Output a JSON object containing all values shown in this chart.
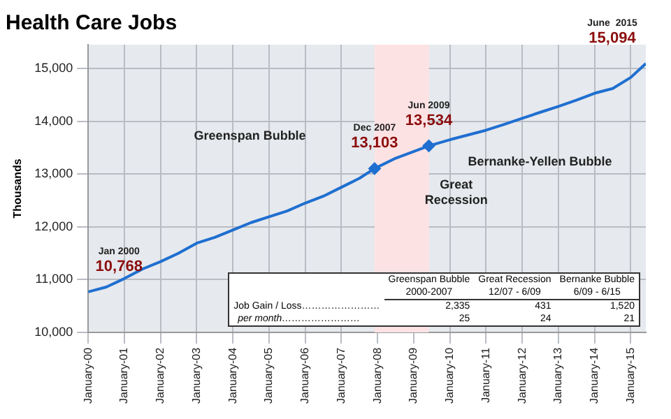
{
  "chart_data": {
    "type": "line",
    "title": "Health Care Jobs",
    "ylabel": "Thousands",
    "x": [
      "2000-01",
      "2000-07",
      "2001-01",
      "2001-07",
      "2002-01",
      "2002-07",
      "2003-01",
      "2003-07",
      "2004-01",
      "2004-07",
      "2005-01",
      "2005-07",
      "2006-01",
      "2006-07",
      "2007-01",
      "2007-07",
      "2007-12",
      "2008-07",
      "2009-06",
      "2010-01",
      "2010-07",
      "2011-01",
      "2011-07",
      "2012-01",
      "2012-07",
      "2013-01",
      "2013-07",
      "2014-01",
      "2014-07",
      "2015-01",
      "2015-06"
    ],
    "series": [
      {
        "type": "line",
        "color": "#1f6fd0",
        "marker": "none",
        "values": [
          10768,
          10860,
          11020,
          11200,
          11340,
          11500,
          11690,
          11800,
          11940,
          12080,
          12190,
          12300,
          12450,
          12580,
          12750,
          12920,
          13103,
          13300,
          13534,
          13650,
          13740,
          13830,
          13940,
          14055,
          14170,
          14280,
          14400,
          14530,
          14620,
          14830,
          15094
        ]
      },
      {
        "type": "scatter",
        "color": "#1f6fd0",
        "marker": "diamond",
        "x": [
          "2007-12",
          "2009-06"
        ],
        "values": [
          13103,
          13534
        ]
      }
    ],
    "xlim": [
      "2000-01",
      "2015-06"
    ],
    "xticks": [
      {
        "value": "2000-01",
        "label": "January-00"
      },
      {
        "value": "2001-01",
        "label": "January-01"
      },
      {
        "value": "2002-01",
        "label": "January-02"
      },
      {
        "value": "2003-01",
        "label": "January-03"
      },
      {
        "value": "2004-01",
        "label": "January-04"
      },
      {
        "value": "2005-01",
        "label": "January-05"
      },
      {
        "value": "2006-01",
        "label": "January-06"
      },
      {
        "value": "2007-01",
        "label": "January-07"
      },
      {
        "value": "2008-01",
        "label": "January-08"
      },
      {
        "value": "2009-01",
        "label": "January-09"
      },
      {
        "value": "2010-01",
        "label": "January-10"
      },
      {
        "value": "2011-01",
        "label": "January-11"
      },
      {
        "value": "2012-01",
        "label": "January-12"
      },
      {
        "value": "2013-01",
        "label": "January-13"
      },
      {
        "value": "2014-01",
        "label": "January-14"
      },
      {
        "value": "2015-01",
        "label": "January-15"
      }
    ],
    "ylim": [
      10000,
      15450
    ],
    "yticks": [
      {
        "value": 10000,
        "label": "10,000"
      },
      {
        "value": 11000,
        "label": "11,000"
      },
      {
        "value": 12000,
        "label": "12,000"
      },
      {
        "value": 13000,
        "label": "13,000"
      },
      {
        "value": 14000,
        "label": "14,000"
      },
      {
        "value": 15000,
        "label": "15,000"
      }
    ],
    "bands": [
      {
        "axis": "x",
        "from": "2007-12",
        "to": "2009-06",
        "color": "#fde2e4"
      }
    ],
    "grid": true,
    "legend": false,
    "annotations": [
      {
        "text": "10,768",
        "x": "2000-01",
        "y": 10768
      },
      {
        "text": "13,103",
        "x": "2007-12",
        "y": 13103
      },
      {
        "text": "13,534",
        "x": "2009-06",
        "y": 13534
      },
      {
        "text": "15,094",
        "x": "2015-06",
        "y": 15094
      },
      "Jan 2000",
      "Dec 2007",
      "Jun 2009",
      "June  2015",
      "Greenspan Bubble",
      "Bernanke-Yellen Bubble",
      "Great Recession",
      "Greenspan Bubble",
      "Great Recession",
      "Bernanke Bubble",
      "2000-2007",
      "12/07 - 6/09",
      "6/09 - 6/15",
      "Job Gain / Loss……………………",
      "2,335",
      "431",
      "1,520",
      "per month……………………",
      "25",
      "24",
      "21"
    ]
  }
}
